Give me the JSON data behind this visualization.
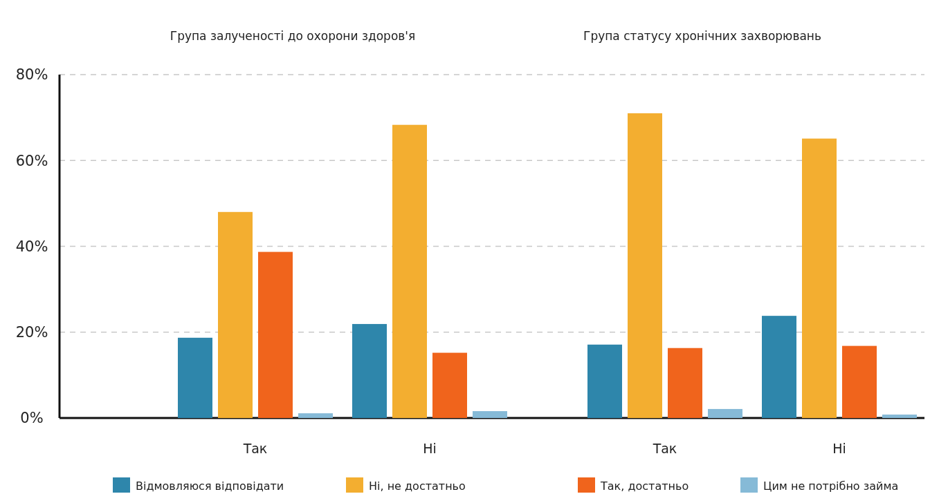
{
  "chart_data": {
    "type": "bar",
    "categories": [
      "Так",
      "Ні",
      "Так",
      "Ні"
    ],
    "series": [
      {
        "name": "Відмовляюся відповідати",
        "color": "#2e86ab",
        "values": [
          18.7,
          21.9,
          17.1,
          23.8
        ]
      },
      {
        "name": "Ні, не достатньо",
        "color": "#f3ae30",
        "values": [
          48.0,
          68.3,
          71.0,
          65.1
        ]
      },
      {
        "name": "Так, достатньо",
        "color": "#f0641c",
        "values": [
          38.7,
          15.2,
          16.3,
          16.8
        ]
      },
      {
        "name": "Цим не потрібно займа",
        "color": "#86bad7",
        "values": [
          1.1,
          1.6,
          2.1,
          0.8
        ]
      }
    ],
    "annotations": [
      "Група залученості до охорони здоров'я",
      "Група статусу хронічних захворювань"
    ],
    "ylim": [
      0,
      80
    ],
    "yticks": [
      {
        "value": 0,
        "label": "0%"
      },
      {
        "value": 20,
        "label": "20%"
      },
      {
        "value": 40,
        "label": "40%"
      },
      {
        "value": 60,
        "label": "60%"
      },
      {
        "value": 80,
        "label": "80%"
      }
    ],
    "grid": "y",
    "legend": "bottom"
  }
}
